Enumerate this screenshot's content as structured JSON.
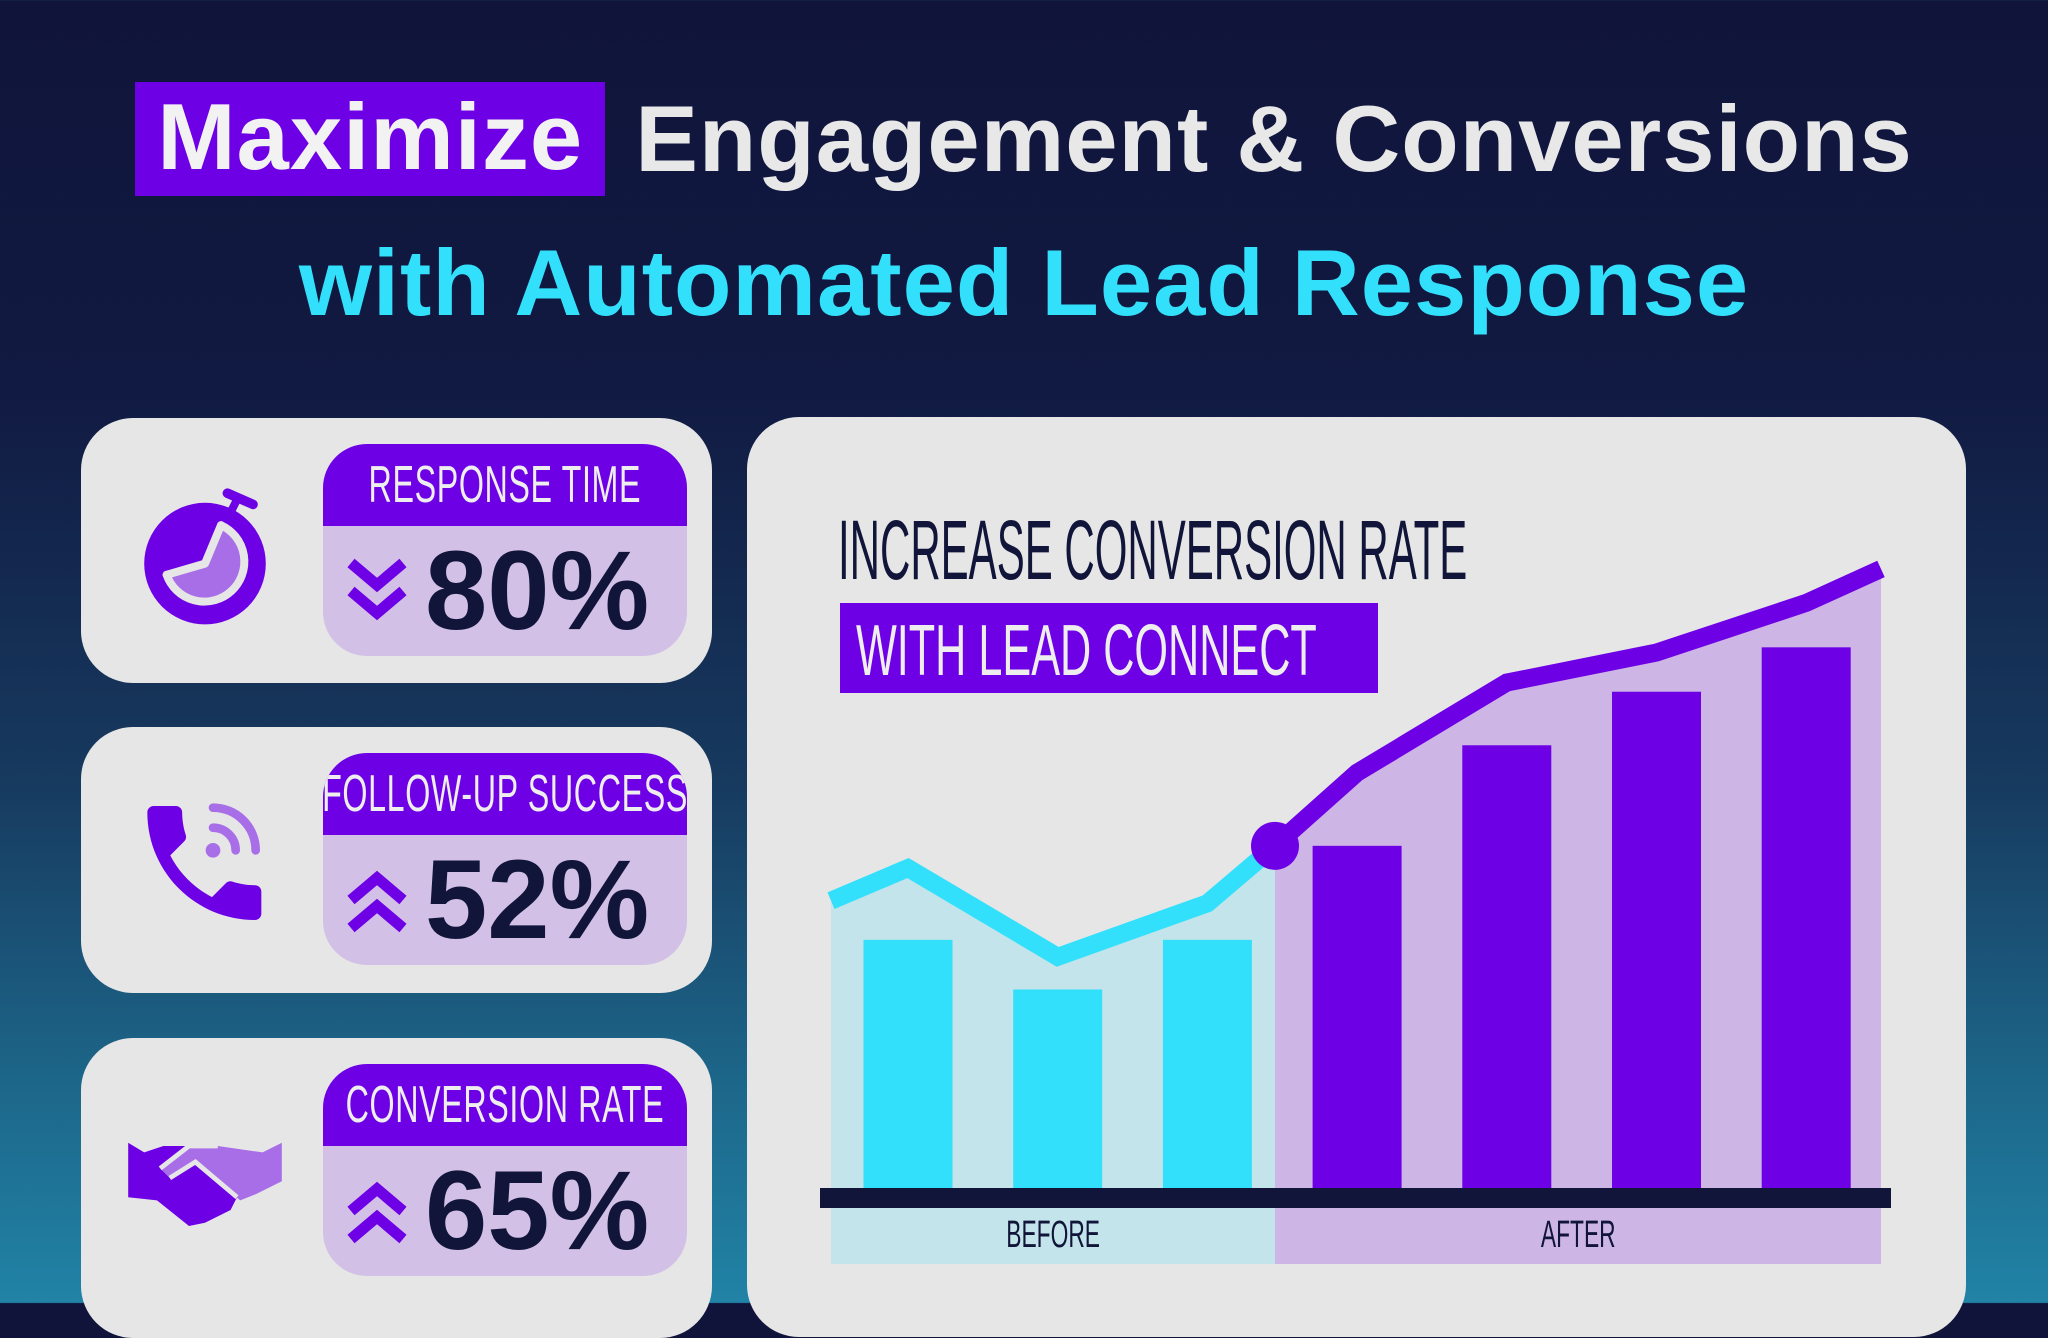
{
  "title": {
    "highlight": "Maximize",
    "line1_rest": "Engagement & Conversions",
    "line2": "with Automated Lead Response"
  },
  "stats": [
    {
      "label": "RESPONSE TIME",
      "value": "80%",
      "direction": "down",
      "icon": "stopwatch-icon"
    },
    {
      "label": "FOLLOW-UP SUCCESS",
      "value": "52%",
      "direction": "up",
      "icon": "phone-icon"
    },
    {
      "label": "CONVERSION RATE",
      "value": "65%",
      "direction": "up",
      "icon": "handshake-icon"
    }
  ],
  "colors": {
    "accent": "#6e00e6",
    "accent_light": "#d3c0e6",
    "after_area": "#cdb6e5",
    "cyan": "#33e0fc",
    "before_area": "#c2e4ea",
    "navy": "#111539",
    "card": "#e6e6e6"
  },
  "chart_data": {
    "type": "bar",
    "title": "INCREASE CONVERSION RATE",
    "subtitle": "WITH LEAD CONNECT",
    "groups": [
      "BEFORE",
      "AFTER"
    ],
    "bars": [
      {
        "group": "BEFORE",
        "value": 190
      },
      {
        "group": "BEFORE",
        "value": 152
      },
      {
        "group": "BEFORE",
        "value": 190
      },
      {
        "group": "AFTER",
        "value": 262
      },
      {
        "group": "AFTER",
        "value": 339
      },
      {
        "group": "AFTER",
        "value": 380
      },
      {
        "group": "AFTER",
        "value": 414
      }
    ],
    "trend_line": {
      "start": 220,
      "at_bars": [
        245,
        177,
        218,
        318,
        387,
        410,
        448
      ],
      "transition": 262,
      "end": 474
    },
    "axes": "none",
    "grid": false,
    "legend": "none"
  }
}
